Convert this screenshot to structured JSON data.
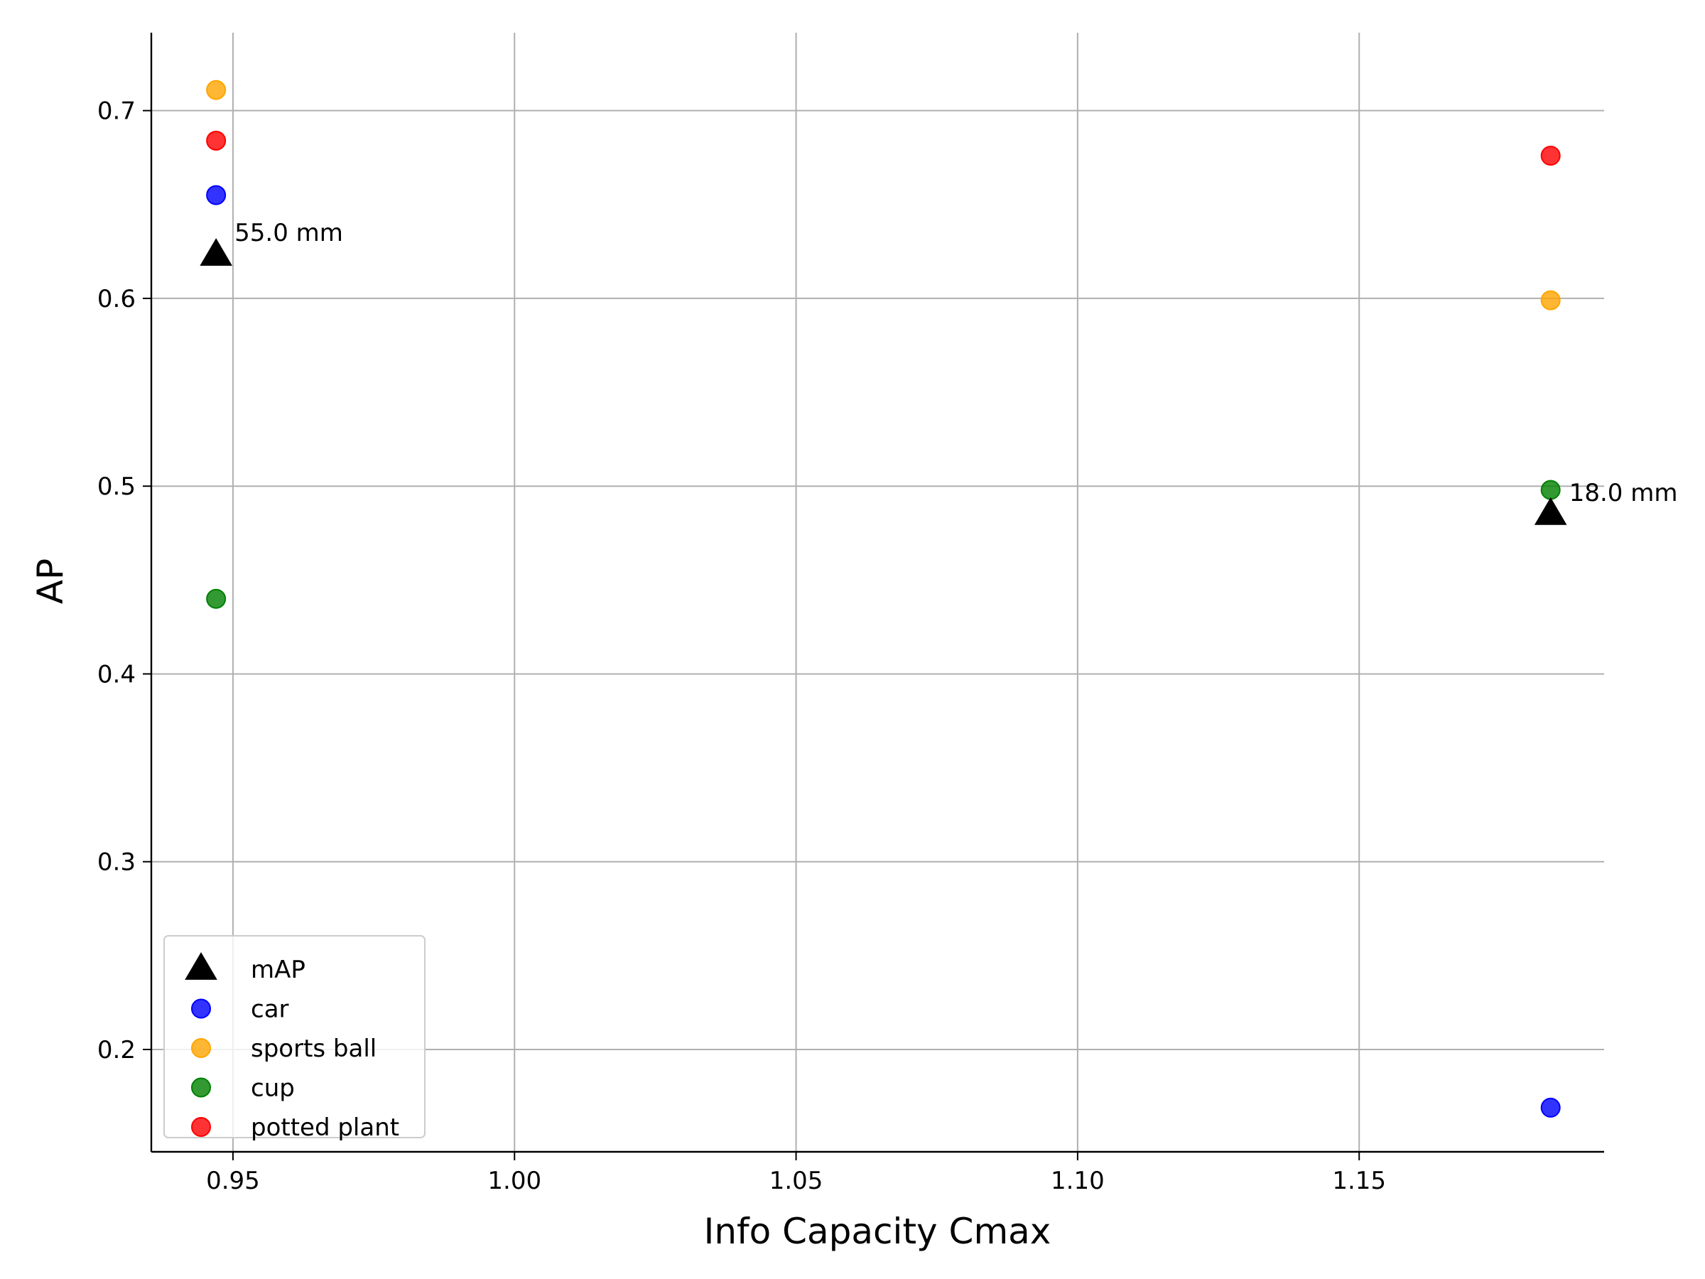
{
  "chart_data": {
    "type": "scatter",
    "title": "",
    "xlabel": "Info Capacity Cmax",
    "ylabel": "AP",
    "xlim": [
      0.9355,
      1.1935
    ],
    "ylim": [
      0.1455,
      0.7415
    ],
    "xticks": [
      0.95,
      1.0,
      1.05,
      1.1,
      1.15
    ],
    "xtick_labels": [
      "0.95",
      "1.00",
      "1.05",
      "1.10",
      "1.15"
    ],
    "yticks": [
      0.2,
      0.3,
      0.4,
      0.5,
      0.6,
      0.7
    ],
    "ytick_labels": [
      "0.2",
      "0.3",
      "0.4",
      "0.5",
      "0.6",
      "0.7"
    ],
    "grid": true,
    "legend_position": "lower-left",
    "series": [
      {
        "name": "mAP",
        "marker": "triangle",
        "color": "#000000",
        "x": [
          0.947,
          1.184
        ],
        "y": [
          0.623,
          0.485
        ]
      },
      {
        "name": "car",
        "marker": "circle",
        "color": "#0000ff",
        "x": [
          0.947,
          1.184
        ],
        "y": [
          0.655,
          0.169
        ]
      },
      {
        "name": "sports ball",
        "marker": "circle",
        "color": "#ffa500",
        "x": [
          0.947,
          1.184
        ],
        "y": [
          0.711,
          0.599
        ]
      },
      {
        "name": "cup",
        "marker": "circle",
        "color": "#008000",
        "x": [
          0.947,
          1.184
        ],
        "y": [
          0.44,
          0.498
        ]
      },
      {
        "name": "potted plant",
        "marker": "circle",
        "color": "#ff0000",
        "x": [
          0.947,
          1.184
        ],
        "y": [
          0.684,
          0.676
        ]
      }
    ],
    "annotations": [
      {
        "text": "55.0 mm",
        "x": 0.947,
        "y": 0.623,
        "anchor": "upper-right"
      },
      {
        "text": "18.0 mm",
        "x": 1.184,
        "y": 0.485,
        "anchor": "right"
      }
    ]
  }
}
